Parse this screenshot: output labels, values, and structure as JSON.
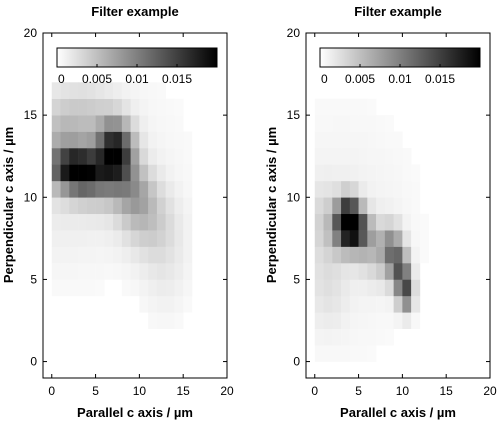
{
  "chart_data": [
    {
      "type": "heatmap",
      "title": "Filter example",
      "xlabel": "Parallel c axis / µm",
      "ylabel": "Perpendicular c axis / µm",
      "xlim": [
        -1,
        20
      ],
      "ylim": [
        -1,
        20
      ],
      "xticks": [
        0,
        5,
        10,
        15,
        20
      ],
      "yticks": [
        0,
        5,
        10,
        15,
        20
      ],
      "grid": false,
      "colorbar": {
        "placement": "top-inside",
        "range": [
          0,
          0.02
        ],
        "colormap": "white-to-black",
        "ticks": [
          "0",
          "0.005",
          "0.01",
          "0.015"
        ],
        "tick_values": [
          0,
          0.005,
          0.01,
          0.015
        ]
      },
      "blobs": [
        {
          "x": 0,
          "y": 12,
          "v": 0.002,
          "sx": 9.0,
          "sy": 4.5
        },
        {
          "x": 2,
          "y": 11.8,
          "v": 0.0105,
          "sx": 1.8,
          "sy": 0.8
        },
        {
          "x": 3.5,
          "y": 11.5,
          "v": 0.011,
          "sx": 1.6,
          "sy": 1.0
        },
        {
          "x": 6.8,
          "y": 13.0,
          "v": 0.0105,
          "sx": 1.2,
          "sy": 1.2
        },
        {
          "x": 8.0,
          "y": 12.5,
          "v": 0.009,
          "sx": 1.2,
          "sy": 1.3
        },
        {
          "x": 6.0,
          "y": 11.5,
          "v": 0.0065,
          "sx": 1.6,
          "sy": 1.2
        },
        {
          "x": 9.5,
          "y": 10.2,
          "v": 0.0055,
          "sx": 1.5,
          "sy": 1.2
        },
        {
          "x": 11.0,
          "y": 8.5,
          "v": 0.003,
          "sx": 2.0,
          "sy": 1.5
        },
        {
          "x": 1.0,
          "y": 13.5,
          "v": 0.0035,
          "sx": 1.8,
          "sy": 1.5
        },
        {
          "x": 4.0,
          "y": 15.0,
          "v": 0.0025,
          "sx": 2.0,
          "sy": 1.2
        },
        {
          "x": 13.0,
          "y": 6.0,
          "v": 0.0015,
          "sx": 2.0,
          "sy": 2.5
        }
      ]
    },
    {
      "type": "heatmap",
      "title": "Filter example",
      "xlabel": "Parallel c axis / µm",
      "ylabel": "Perpendicular c axis / µm",
      "xlim": [
        -1,
        20
      ],
      "ylim": [
        -1,
        20
      ],
      "xticks": [
        0,
        5,
        10,
        15,
        20
      ],
      "yticks": [
        0,
        5,
        10,
        15,
        20
      ],
      "grid": false,
      "colorbar": {
        "placement": "top-inside",
        "range": [
          0,
          0.02
        ],
        "colormap": "white-to-black",
        "ticks": [
          "0",
          "0.005",
          "0.01",
          "0.015"
        ],
        "tick_values": [
          0,
          0.005,
          0.01,
          0.015
        ]
      },
      "blobs": [
        {
          "x": 3,
          "y": 8,
          "v": 0.0012,
          "sx": 6.5,
          "sy": 5.5
        },
        {
          "x": 3.8,
          "y": 8.8,
          "v": 0.0145,
          "sx": 0.9,
          "sy": 0.9
        },
        {
          "x": 4.5,
          "y": 8.2,
          "v": 0.0125,
          "sx": 1.0,
          "sy": 0.8
        },
        {
          "x": 3.0,
          "y": 8.0,
          "v": 0.006,
          "sx": 0.9,
          "sy": 1.0
        },
        {
          "x": 5.5,
          "y": 7.5,
          "v": 0.005,
          "sx": 1.2,
          "sy": 0.9
        },
        {
          "x": 8.8,
          "y": 6.8,
          "v": 0.008,
          "sx": 0.8,
          "sy": 1.0
        },
        {
          "x": 9.8,
          "y": 5.5,
          "v": 0.0095,
          "sx": 0.7,
          "sy": 0.9
        },
        {
          "x": 10.4,
          "y": 4.2,
          "v": 0.0115,
          "sx": 0.6,
          "sy": 0.8
        },
        {
          "x": 7.5,
          "y": 6.5,
          "v": 0.003,
          "sx": 1.5,
          "sy": 1.2
        },
        {
          "x": 1.0,
          "y": 8.5,
          "v": 0.0025,
          "sx": 1.0,
          "sy": 1.5
        },
        {
          "x": 1.5,
          "y": 4.5,
          "v": 0.0015,
          "sx": 1.5,
          "sy": 1.8
        }
      ]
    }
  ]
}
